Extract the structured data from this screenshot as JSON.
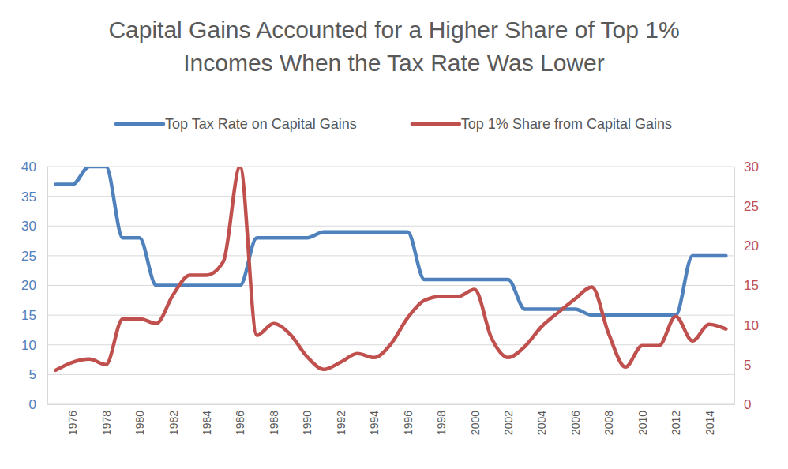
{
  "chart_data": {
    "type": "line",
    "title": "Capital Gains Accounted for a Higher Share of Top 1% Incomes When the Tax Rate Was Lower",
    "x": [
      1975,
      1976,
      1977,
      1978,
      1979,
      1980,
      1981,
      1982,
      1983,
      1984,
      1985,
      1986,
      1987,
      1988,
      1989,
      1990,
      1991,
      1992,
      1993,
      1994,
      1995,
      1996,
      1997,
      1998,
      1999,
      2000,
      2001,
      2002,
      2003,
      2004,
      2005,
      2006,
      2007,
      2008,
      2009,
      2010,
      2011,
      2012,
      2013,
      2014,
      2015
    ],
    "xlim": [
      1974.5,
      2015.5
    ],
    "xticks": [
      1976,
      1978,
      1980,
      1982,
      1984,
      1986,
      1988,
      1990,
      1992,
      1994,
      1996,
      1998,
      2000,
      2002,
      2004,
      2006,
      2008,
      2010,
      2012,
      2014
    ],
    "ylim": [
      0,
      40
    ],
    "yticks": [
      0,
      5,
      10,
      15,
      20,
      25,
      30,
      35,
      40
    ],
    "y2lim": [
      0,
      30
    ],
    "y2ticks": [
      0,
      5,
      10,
      15,
      20,
      25,
      30
    ],
    "grid": true,
    "legend": "top",
    "line_style": "smooth",
    "series": [
      {
        "name": "Top Tax Rate on Capital Gains",
        "color": "#4f81bd",
        "values": [
          37,
          37,
          40,
          40,
          28,
          28,
          20,
          20,
          20,
          20,
          20,
          20,
          28,
          28,
          28,
          28,
          29,
          29,
          29,
          29,
          29,
          29,
          21,
          21,
          21,
          21,
          21,
          21,
          16,
          16,
          16,
          16,
          15,
          15,
          15,
          15,
          15,
          15,
          25,
          25,
          25
        ]
      },
      {
        "name": "Top 1% Share from Capital Gains",
        "color": "#c0504d",
        "axis": "y2",
        "values": [
          4.3,
          5.3,
          5.7,
          5.0,
          10.8,
          10.8,
          10.2,
          13.8,
          16.3,
          16.3,
          18.0,
          30.0,
          8.7,
          10.2,
          8.8,
          6.0,
          4.4,
          5.3,
          6.4,
          5.9,
          7.6,
          10.9,
          13.1,
          13.6,
          13.6,
          14.5,
          8.4,
          5.9,
          7.3,
          9.8,
          11.6,
          13.3,
          14.8,
          8.9,
          4.7,
          7.4,
          7.4,
          11.1,
          8.0,
          10.1,
          9.5
        ]
      }
    ]
  }
}
